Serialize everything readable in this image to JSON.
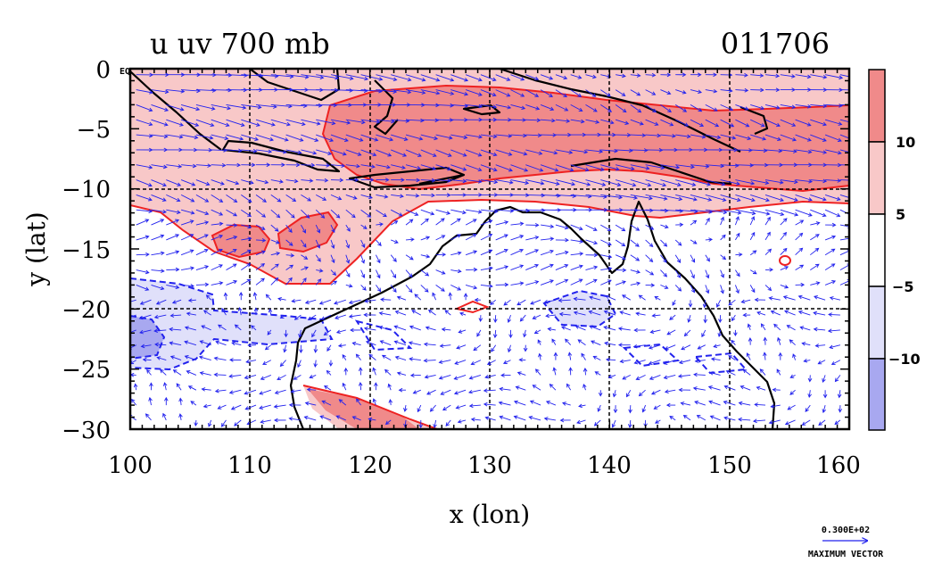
{
  "title": {
    "left": "u uv 700 mb",
    "right": "011706"
  },
  "axes": {
    "xlabel": "x (lon)",
    "ylabel": "y (lat)",
    "x_ticks": [
      "100",
      "110",
      "120",
      "130",
      "140",
      "150",
      "160"
    ],
    "y_ticks": [
      "0",
      "−5",
      "−10",
      "−15",
      "−20",
      "−25",
      "−30"
    ],
    "y_zero_suffix": "EQ",
    "x_range": [
      100,
      160
    ],
    "y_range": [
      -30,
      0
    ]
  },
  "colorbar": {
    "labels": [
      "10",
      "5",
      "−5",
      "−10"
    ],
    "colors": [
      "#f08a8a",
      "#f8c8c8",
      "#ffffff",
      "#e0e0fa",
      "#a8a8f0"
    ]
  },
  "vector_key": {
    "value": "0.300E+02",
    "label": "MAXIMUM VECTOR"
  },
  "colors": {
    "pos_strong": "#f08a8a",
    "pos_weak": "#f8c8c8",
    "neg_weak": "#e0e0fa",
    "neg_strong": "#a8a8f0",
    "contour_pos": "#ee2222",
    "contour_neg": "#2222ee",
    "vector": "#2222ee",
    "coast": "#000000"
  },
  "chart_data": {
    "type": "heatmap",
    "field": "u wind component with wind vectors",
    "level": "700 mb",
    "contour_levels": [
      -10,
      -5,
      5,
      10
    ],
    "lon_range": [
      100,
      160
    ],
    "lat_range": [
      -30,
      0
    ],
    "gridlines_lon": [
      110,
      120,
      130,
      140,
      150
    ],
    "gridlines_lat": [
      -10,
      -20
    ]
  }
}
